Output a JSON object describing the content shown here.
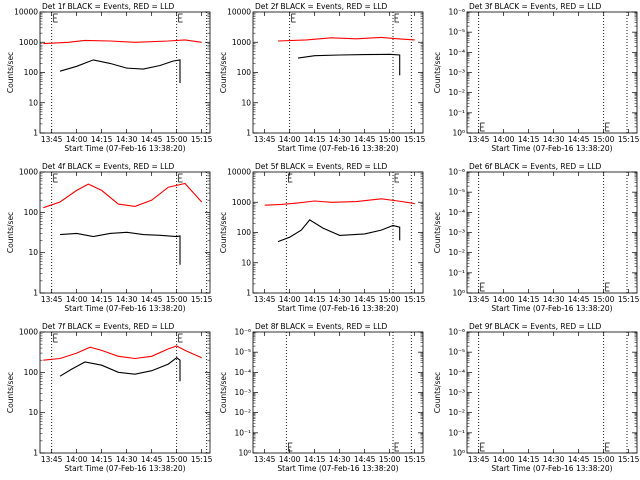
{
  "chart_data": [
    {
      "type": "line",
      "title": "Det 1f BLACK = Events, RED = LLD",
      "ylabel": "Counts/sec",
      "xlabel": "Start Time (07-Feb-16 13:38:20)",
      "x_ticks": [
        "13:45",
        "14:00",
        "14:15",
        "14:30",
        "14:45",
        "15:00",
        "15:15"
      ],
      "y_scale": "log",
      "y_ticks": [
        "1",
        "10",
        "100",
        "1000",
        "10000"
      ],
      "ylim": [
        1,
        10000
      ],
      "grid": false,
      "markers": [
        {
          "x": "13:45",
          "style": "dotted"
        },
        {
          "x": "15:00",
          "style": "dotted"
        },
        {
          "x": "15:18",
          "style": "dotted"
        }
      ],
      "series": [
        {
          "color": "#ff0000",
          "x": [
            "13:40",
            "13:55",
            "14:05",
            "14:20",
            "14:35",
            "14:55",
            "15:05",
            "15:15"
          ],
          "values": [
            900,
            1000,
            1150,
            1100,
            1000,
            1100,
            1200,
            1000
          ]
        },
        {
          "color": "#000000",
          "x": [
            "13:50",
            "14:00",
            "14:10",
            "14:20",
            "14:30",
            "14:40",
            "14:50",
            "14:58",
            "15:02",
            "15:02"
          ],
          "values": [
            110,
            160,
            260,
            200,
            140,
            130,
            170,
            240,
            260,
            45
          ]
        }
      ]
    },
    {
      "type": "line",
      "title": "Det 2f BLACK = Events, RED = LLD",
      "ylabel": "Counts/sec",
      "xlabel": "Start Time (07-Feb-16 13:38:20)",
      "x_ticks": [
        "13:45",
        "14:00",
        "14:15",
        "14:30",
        "14:45",
        "15:00",
        "15:15"
      ],
      "y_scale": "log",
      "y_ticks": [
        "1",
        "10",
        "100",
        "1000",
        "10000"
      ],
      "ylim": [
        1,
        10000
      ],
      "grid": false,
      "markers": [
        {
          "x": "14:00",
          "style": "dotted"
        },
        {
          "x": "15:02",
          "style": "dotted"
        },
        {
          "x": "15:13",
          "style": "dotted"
        }
      ],
      "series": [
        {
          "color": "#ff0000",
          "x": [
            "13:53",
            "14:10",
            "14:25",
            "14:40",
            "14:55",
            "15:05",
            "15:15"
          ],
          "values": [
            1100,
            1200,
            1400,
            1300,
            1450,
            1300,
            1200
          ]
        },
        {
          "color": "#000000",
          "x": [
            "14:05",
            "14:15",
            "14:30",
            "14:45",
            "15:00",
            "15:06",
            "15:06"
          ],
          "values": [
            300,
            360,
            380,
            390,
            400,
            380,
            80
          ]
        }
      ]
    },
    {
      "type": "line",
      "title": "Det 3f BLACK = Events, RED = LLD",
      "ylabel": "Counts/sec",
      "xlabel": "Start Time (07-Feb-16 13:38:20)",
      "x_ticks": [
        "13:45",
        "14:00",
        "14:15",
        "14:30",
        "14:45",
        "15:00",
        "15:15"
      ],
      "y_scale": "log",
      "y_ticks": [
        "10⁰",
        "10⁻¹",
        "10⁻²",
        "10⁻³",
        "10⁻⁴",
        "10⁻⁵",
        "10⁻⁶"
      ],
      "ylim": [
        1,
        1e-06
      ],
      "grid": false,
      "markers": [
        {
          "x": "13:45",
          "style": "dotted"
        },
        {
          "x": "15:00",
          "style": "dotted"
        },
        {
          "x": "15:14",
          "style": "dotted"
        }
      ],
      "series": []
    },
    {
      "type": "line",
      "title": "Det 4f BLACK = Events, RED = LLD",
      "ylabel": "Counts/sec",
      "xlabel": "Start Time (07-Feb-16 13:38:20)",
      "x_ticks": [
        "13:45",
        "14:00",
        "14:15",
        "14:30",
        "14:45",
        "15:00",
        "15:15"
      ],
      "y_scale": "log",
      "y_ticks": [
        "1",
        "10",
        "100",
        "1000"
      ],
      "ylim": [
        1,
        1000
      ],
      "grid": false,
      "markers": [
        {
          "x": "13:45",
          "style": "dotted"
        },
        {
          "x": "15:00",
          "style": "dotted"
        },
        {
          "x": "15:18",
          "style": "dotted"
        }
      ],
      "series": [
        {
          "color": "#ff0000",
          "x": [
            "13:40",
            "13:50",
            "14:00",
            "14:07",
            "14:15",
            "14:25",
            "14:35",
            "14:45",
            "14:55",
            "15:05",
            "15:15"
          ],
          "values": [
            130,
            180,
            350,
            500,
            350,
            160,
            140,
            200,
            420,
            520,
            180
          ]
        },
        {
          "color": "#000000",
          "x": [
            "13:50",
            "14:00",
            "14:10",
            "14:20",
            "14:30",
            "14:40",
            "14:50",
            "15:00",
            "15:02",
            "15:02"
          ],
          "values": [
            28,
            30,
            25,
            30,
            32,
            28,
            27,
            25,
            26,
            5
          ]
        }
      ]
    },
    {
      "type": "line",
      "title": "Det 5f BLACK = Events, RED = LLD",
      "ylabel": "Counts/sec",
      "xlabel": "Start Time (07-Feb-16 13:38:20)",
      "x_ticks": [
        "13:45",
        "14:00",
        "14:15",
        "14:30",
        "14:45",
        "15:00",
        "15:15"
      ],
      "y_scale": "log",
      "y_ticks": [
        "1",
        "10",
        "100",
        "1000",
        "10000"
      ],
      "ylim": [
        1,
        10000
      ],
      "grid": false,
      "markers": [
        {
          "x": "13:58",
          "style": "dotted"
        },
        {
          "x": "15:02",
          "style": "dotted"
        },
        {
          "x": "15:13",
          "style": "dotted"
        }
      ],
      "series": [
        {
          "color": "#ff0000",
          "x": [
            "13:45",
            "13:55",
            "14:05",
            "14:15",
            "14:25",
            "14:40",
            "14:55",
            "15:05",
            "15:15"
          ],
          "values": [
            800,
            850,
            950,
            1100,
            1000,
            1050,
            1300,
            1100,
            900
          ]
        },
        {
          "color": "#000000",
          "x": [
            "13:53",
            "14:00",
            "14:07",
            "14:12",
            "14:20",
            "14:30",
            "14:45",
            "14:55",
            "15:02",
            "15:06",
            "15:06"
          ],
          "values": [
            50,
            70,
            120,
            260,
            140,
            80,
            90,
            120,
            170,
            150,
            55
          ]
        }
      ]
    },
    {
      "type": "line",
      "title": "Det 6f BLACK = Events, RED = LLD",
      "ylabel": "Counts/sec",
      "xlabel": "Start Time (07-Feb-16 13:38:20)",
      "x_ticks": [
        "13:45",
        "14:00",
        "14:15",
        "14:30",
        "14:45",
        "15:00",
        "15:15"
      ],
      "y_scale": "log",
      "y_ticks": [
        "10⁰",
        "10⁻¹",
        "10⁻²",
        "10⁻³",
        "10⁻⁴",
        "10⁻⁵",
        "10⁻⁶"
      ],
      "ylim": [
        1,
        1e-06
      ],
      "grid": false,
      "markers": [
        {
          "x": "13:45",
          "style": "dotted"
        },
        {
          "x": "15:00",
          "style": "dotted"
        },
        {
          "x": "15:14",
          "style": "dotted"
        }
      ],
      "series": []
    },
    {
      "type": "line",
      "title": "Det 7f BLACK = Events, RED = LLD",
      "ylabel": "Counts/sec",
      "xlabel": "Start Time (07-Feb-16 13:38:20)",
      "x_ticks": [
        "13:45",
        "14:00",
        "14:15",
        "14:30",
        "14:45",
        "15:00",
        "15:15"
      ],
      "y_scale": "log",
      "y_ticks": [
        "1",
        "10",
        "100",
        "1000"
      ],
      "ylim": [
        1,
        1000
      ],
      "grid": false,
      "markers": [
        {
          "x": "13:45",
          "style": "dotted"
        },
        {
          "x": "15:00",
          "style": "dotted"
        },
        {
          "x": "15:18",
          "style": "dotted"
        }
      ],
      "series": [
        {
          "color": "#ff0000",
          "x": [
            "13:40",
            "13:50",
            "14:00",
            "14:08",
            "14:15",
            "14:25",
            "14:35",
            "14:45",
            "14:55",
            "15:00",
            "15:05",
            "15:15"
          ],
          "values": [
            200,
            220,
            300,
            420,
            350,
            250,
            220,
            250,
            380,
            450,
            350,
            230
          ]
        },
        {
          "color": "#000000",
          "x": [
            "13:50",
            "13:57",
            "14:05",
            "14:15",
            "14:25",
            "14:35",
            "14:45",
            "14:55",
            "15:00",
            "15:02",
            "15:02"
          ],
          "values": [
            80,
            120,
            180,
            150,
            100,
            90,
            110,
            160,
            230,
            200,
            60
          ]
        }
      ]
    },
    {
      "type": "line",
      "title": "Det 8f BLACK = Events, RED = LLD",
      "ylabel": "Counts/sec",
      "xlabel": "Start Time (07-Feb-16 13:38:20)",
      "x_ticks": [
        "13:45",
        "14:00",
        "14:15",
        "14:30",
        "14:45",
        "15:00",
        "15:15"
      ],
      "y_scale": "log",
      "y_ticks": [
        "10⁰",
        "10⁻¹",
        "10⁻²",
        "10⁻³",
        "10⁻⁴",
        "10⁻⁵",
        "10⁻⁶"
      ],
      "ylim": [
        1,
        1e-06
      ],
      "grid": false,
      "markers": [
        {
          "x": "13:58",
          "style": "dotted"
        },
        {
          "x": "15:02",
          "style": "dotted"
        },
        {
          "x": "15:13",
          "style": "dotted"
        }
      ],
      "series": []
    },
    {
      "type": "line",
      "title": "Det 9f BLACK = Events, RED = LLD",
      "ylabel": "Counts/sec",
      "xlabel": "Start Time (07-Feb-16 13:38:20)",
      "x_ticks": [
        "13:45",
        "14:00",
        "14:15",
        "14:30",
        "14:45",
        "15:00",
        "15:15"
      ],
      "y_scale": "log",
      "y_ticks": [
        "10⁰",
        "10⁻¹",
        "10⁻²",
        "10⁻³",
        "10⁻⁴",
        "10⁻⁵",
        "10⁻⁶"
      ],
      "ylim": [
        1,
        1e-06
      ],
      "grid": false,
      "markers": [
        {
          "x": "13:45",
          "style": "dotted"
        },
        {
          "x": "15:00",
          "style": "dotted"
        },
        {
          "x": "15:14",
          "style": "dotted"
        }
      ],
      "series": []
    }
  ]
}
